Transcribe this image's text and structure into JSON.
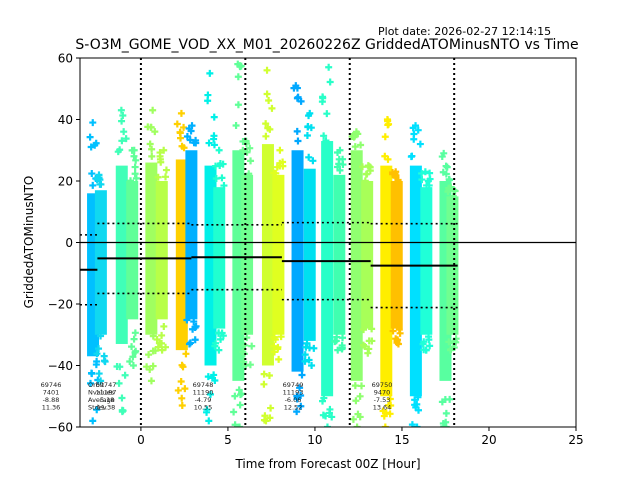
{
  "chart_data": {
    "type": "scatter",
    "title": "S-O3M_GOME_VOD_XX_M01_20260226Z GriddedATOMinusNTO vs Time",
    "plot_date": "Plot date: 2026-02-27 12:14:15",
    "xlabel": "Time from Forecast 00Z [Hour]",
    "ylabel": "GriddedATOMinusNTO",
    "xlim": [
      -3.5,
      25
    ],
    "ylim": [
      -60,
      60
    ],
    "xticks": [
      0,
      5,
      10,
      15,
      20,
      25
    ],
    "yticks": [
      -60,
      -40,
      -20,
      0,
      20,
      40,
      60
    ],
    "grid": false,
    "marker": "+",
    "vertical_dotted_lines_x": [
      0,
      6,
      12,
      18
    ],
    "zero_line_y": 0,
    "orbits": [
      {
        "orbit": "69746",
        "nvalues": "7401",
        "average": "-8.88",
        "stdev": "11.36",
        "t_start": -3.5,
        "t_end": -2.5,
        "mean": -8.88,
        "std": 11.36
      },
      {
        "orbit": "69747",
        "nvalues": "11187",
        "average": "-5.18",
        "stdev": "11.38",
        "t_start": -2.5,
        "t_end": 2.9,
        "mean": -5.18,
        "std": 11.38,
        "labels_overlap": "Orbit / Nvalues / Average / Stdev"
      },
      {
        "orbit": "69748",
        "nvalues": "11190",
        "average": "-4.79",
        "stdev": "10.55",
        "t_start": 2.9,
        "t_end": 8.1,
        "mean": -4.79,
        "std": 10.55
      },
      {
        "orbit": "69749",
        "nvalues": "11193",
        "average": "-6.06",
        "stdev": "12.52",
        "t_start": 8.1,
        "t_end": 13.2,
        "mean": -6.06,
        "std": 12.52
      },
      {
        "orbit": "69750",
        "nvalues": "9470",
        "average": "-7.53",
        "stdev": "13.64",
        "t_start": 13.2,
        "t_end": 18.2,
        "mean": -7.53,
        "std": 13.64
      }
    ],
    "stat_labels": [
      "Orbit",
      "Nvalues",
      "Average",
      "Stdev"
    ],
    "swaths": [
      {
        "t": -2.75,
        "color": "#00c0ff",
        "core": [
          -37,
          16
        ],
        "extent": [
          -58,
          39
        ]
      },
      {
        "t": -2.3,
        "color": "#10d8f0",
        "core": [
          -30,
          17
        ],
        "extent": [
          -45,
          22
        ]
      },
      {
        "t": -1.1,
        "color": "#40ffb8",
        "core": [
          -33,
          25
        ],
        "extent": [
          -55,
          43
        ]
      },
      {
        "t": -0.5,
        "color": "#60ff98",
        "core": [
          -25,
          20
        ],
        "extent": [
          -40,
          30
        ]
      },
      {
        "t": 0.6,
        "color": "#a0ff60",
        "core": [
          -30,
          26
        ],
        "extent": [
          -45,
          43
        ]
      },
      {
        "t": 1.2,
        "color": "#b8ff48",
        "core": [
          -25,
          20
        ],
        "extent": [
          -35,
          30
        ]
      },
      {
        "t": 2.35,
        "color": "#ffd000",
        "core": [
          -35,
          27
        ],
        "extent": [
          -53,
          42
        ]
      },
      {
        "t": 2.9,
        "color": "#00b0ff",
        "core": [
          -25,
          30
        ],
        "extent": [
          -33,
          38
        ]
      },
      {
        "t": 4.0,
        "color": "#00f0e8",
        "core": [
          -40,
          25
        ],
        "extent": [
          -58,
          55
        ]
      },
      {
        "t": 4.5,
        "color": "#20ffd0",
        "core": [
          -28,
          18
        ],
        "extent": [
          -35,
          30
        ]
      },
      {
        "t": 5.6,
        "color": "#60ff98",
        "core": [
          -45,
          30
        ],
        "extent": [
          -60,
          58
        ]
      },
      {
        "t": 6.1,
        "color": "#70ff90",
        "core": [
          -30,
          22
        ],
        "extent": [
          -40,
          33
        ]
      },
      {
        "t": 7.3,
        "color": "#d0ff30",
        "core": [
          -40,
          32
        ],
        "extent": [
          -58,
          56
        ]
      },
      {
        "t": 7.9,
        "color": "#e0ff20",
        "core": [
          -30,
          22
        ],
        "extent": [
          -38,
          30
        ]
      },
      {
        "t": 9.0,
        "color": "#00a8ff",
        "core": [
          -42,
          30
        ],
        "extent": [
          -55,
          51
        ]
      },
      {
        "t": 9.7,
        "color": "#00e0f0",
        "core": [
          -32,
          24
        ],
        "extent": [
          -40,
          42
        ]
      },
      {
        "t": 10.7,
        "color": "#28ffc8",
        "core": [
          -50,
          33
        ],
        "extent": [
          -60,
          57
        ]
      },
      {
        "t": 11.4,
        "color": "#40ffb0",
        "core": [
          -30,
          22
        ],
        "extent": [
          -35,
          30
        ]
      },
      {
        "t": 12.4,
        "color": "#90ff70",
        "core": [
          -45,
          30
        ],
        "extent": [
          -60,
          36
        ]
      },
      {
        "t": 13.0,
        "color": "#a8ff58",
        "core": [
          -28,
          20
        ],
        "extent": [
          -36,
          25
        ]
      },
      {
        "t": 14.1,
        "color": "#ffee00",
        "core": [
          -50,
          25
        ],
        "extent": [
          -60,
          40
        ]
      },
      {
        "t": 14.7,
        "color": "#ffc000",
        "core": [
          -28,
          20
        ],
        "extent": [
          -33,
          23
        ]
      },
      {
        "t": 15.8,
        "color": "#00e0ff",
        "core": [
          -50,
          25
        ],
        "extent": [
          -60,
          38
        ]
      },
      {
        "t": 16.4,
        "color": "#20ffd8",
        "core": [
          -30,
          18
        ],
        "extent": [
          -35,
          23
        ]
      },
      {
        "t": 17.5,
        "color": "#58ffa0",
        "core": [
          -45,
          20
        ],
        "extent": [
          -60,
          29
        ]
      },
      {
        "t": 17.9,
        "color": "#70ff90",
        "core": [
          -30,
          15
        ],
        "extent": [
          -35,
          18
        ]
      }
    ]
  }
}
